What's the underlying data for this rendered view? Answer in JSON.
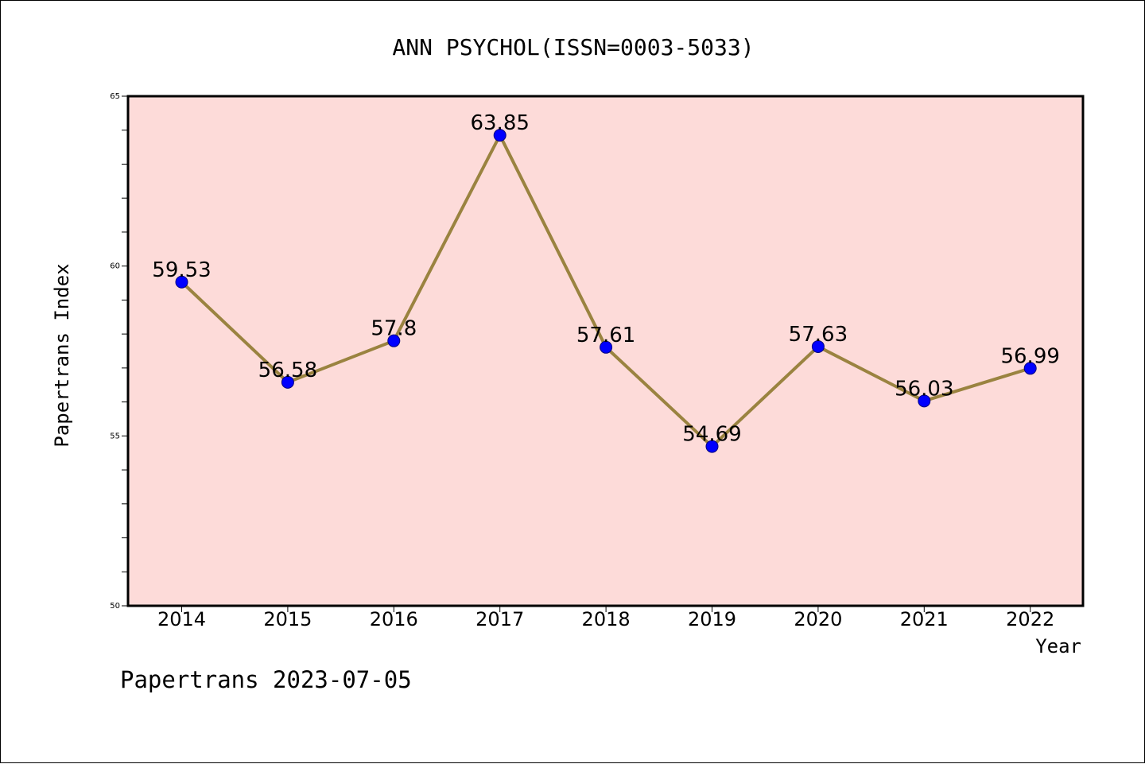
{
  "chart_data": {
    "type": "line",
    "title": "ANN PSYCHOL(ISSN=0003-5033)",
    "xlabel": "Year",
    "ylabel": "Papertrans Index",
    "categories": [
      "2014",
      "2015",
      "2016",
      "2017",
      "2018",
      "2019",
      "2020",
      "2021",
      "2022"
    ],
    "series": [
      {
        "values": [
          59.53,
          56.58,
          57.8,
          63.85,
          57.61,
          54.69,
          57.63,
          56.03,
          56.99
        ],
        "labels": [
          "59.53",
          "56.58",
          "57.8",
          "63.85",
          "57.61",
          "54.69",
          "57.63",
          "56.03",
          "56.99"
        ]
      }
    ],
    "yticks": [
      "50",
      "55",
      "60",
      "65"
    ],
    "ylim": [
      50,
      65
    ],
    "grid": false,
    "colors": {
      "plot_background": "#fddbd9",
      "line": "#9a8340",
      "marker": "#0000ff"
    }
  },
  "footer": {
    "text": "Papertrans 2023-07-05"
  }
}
